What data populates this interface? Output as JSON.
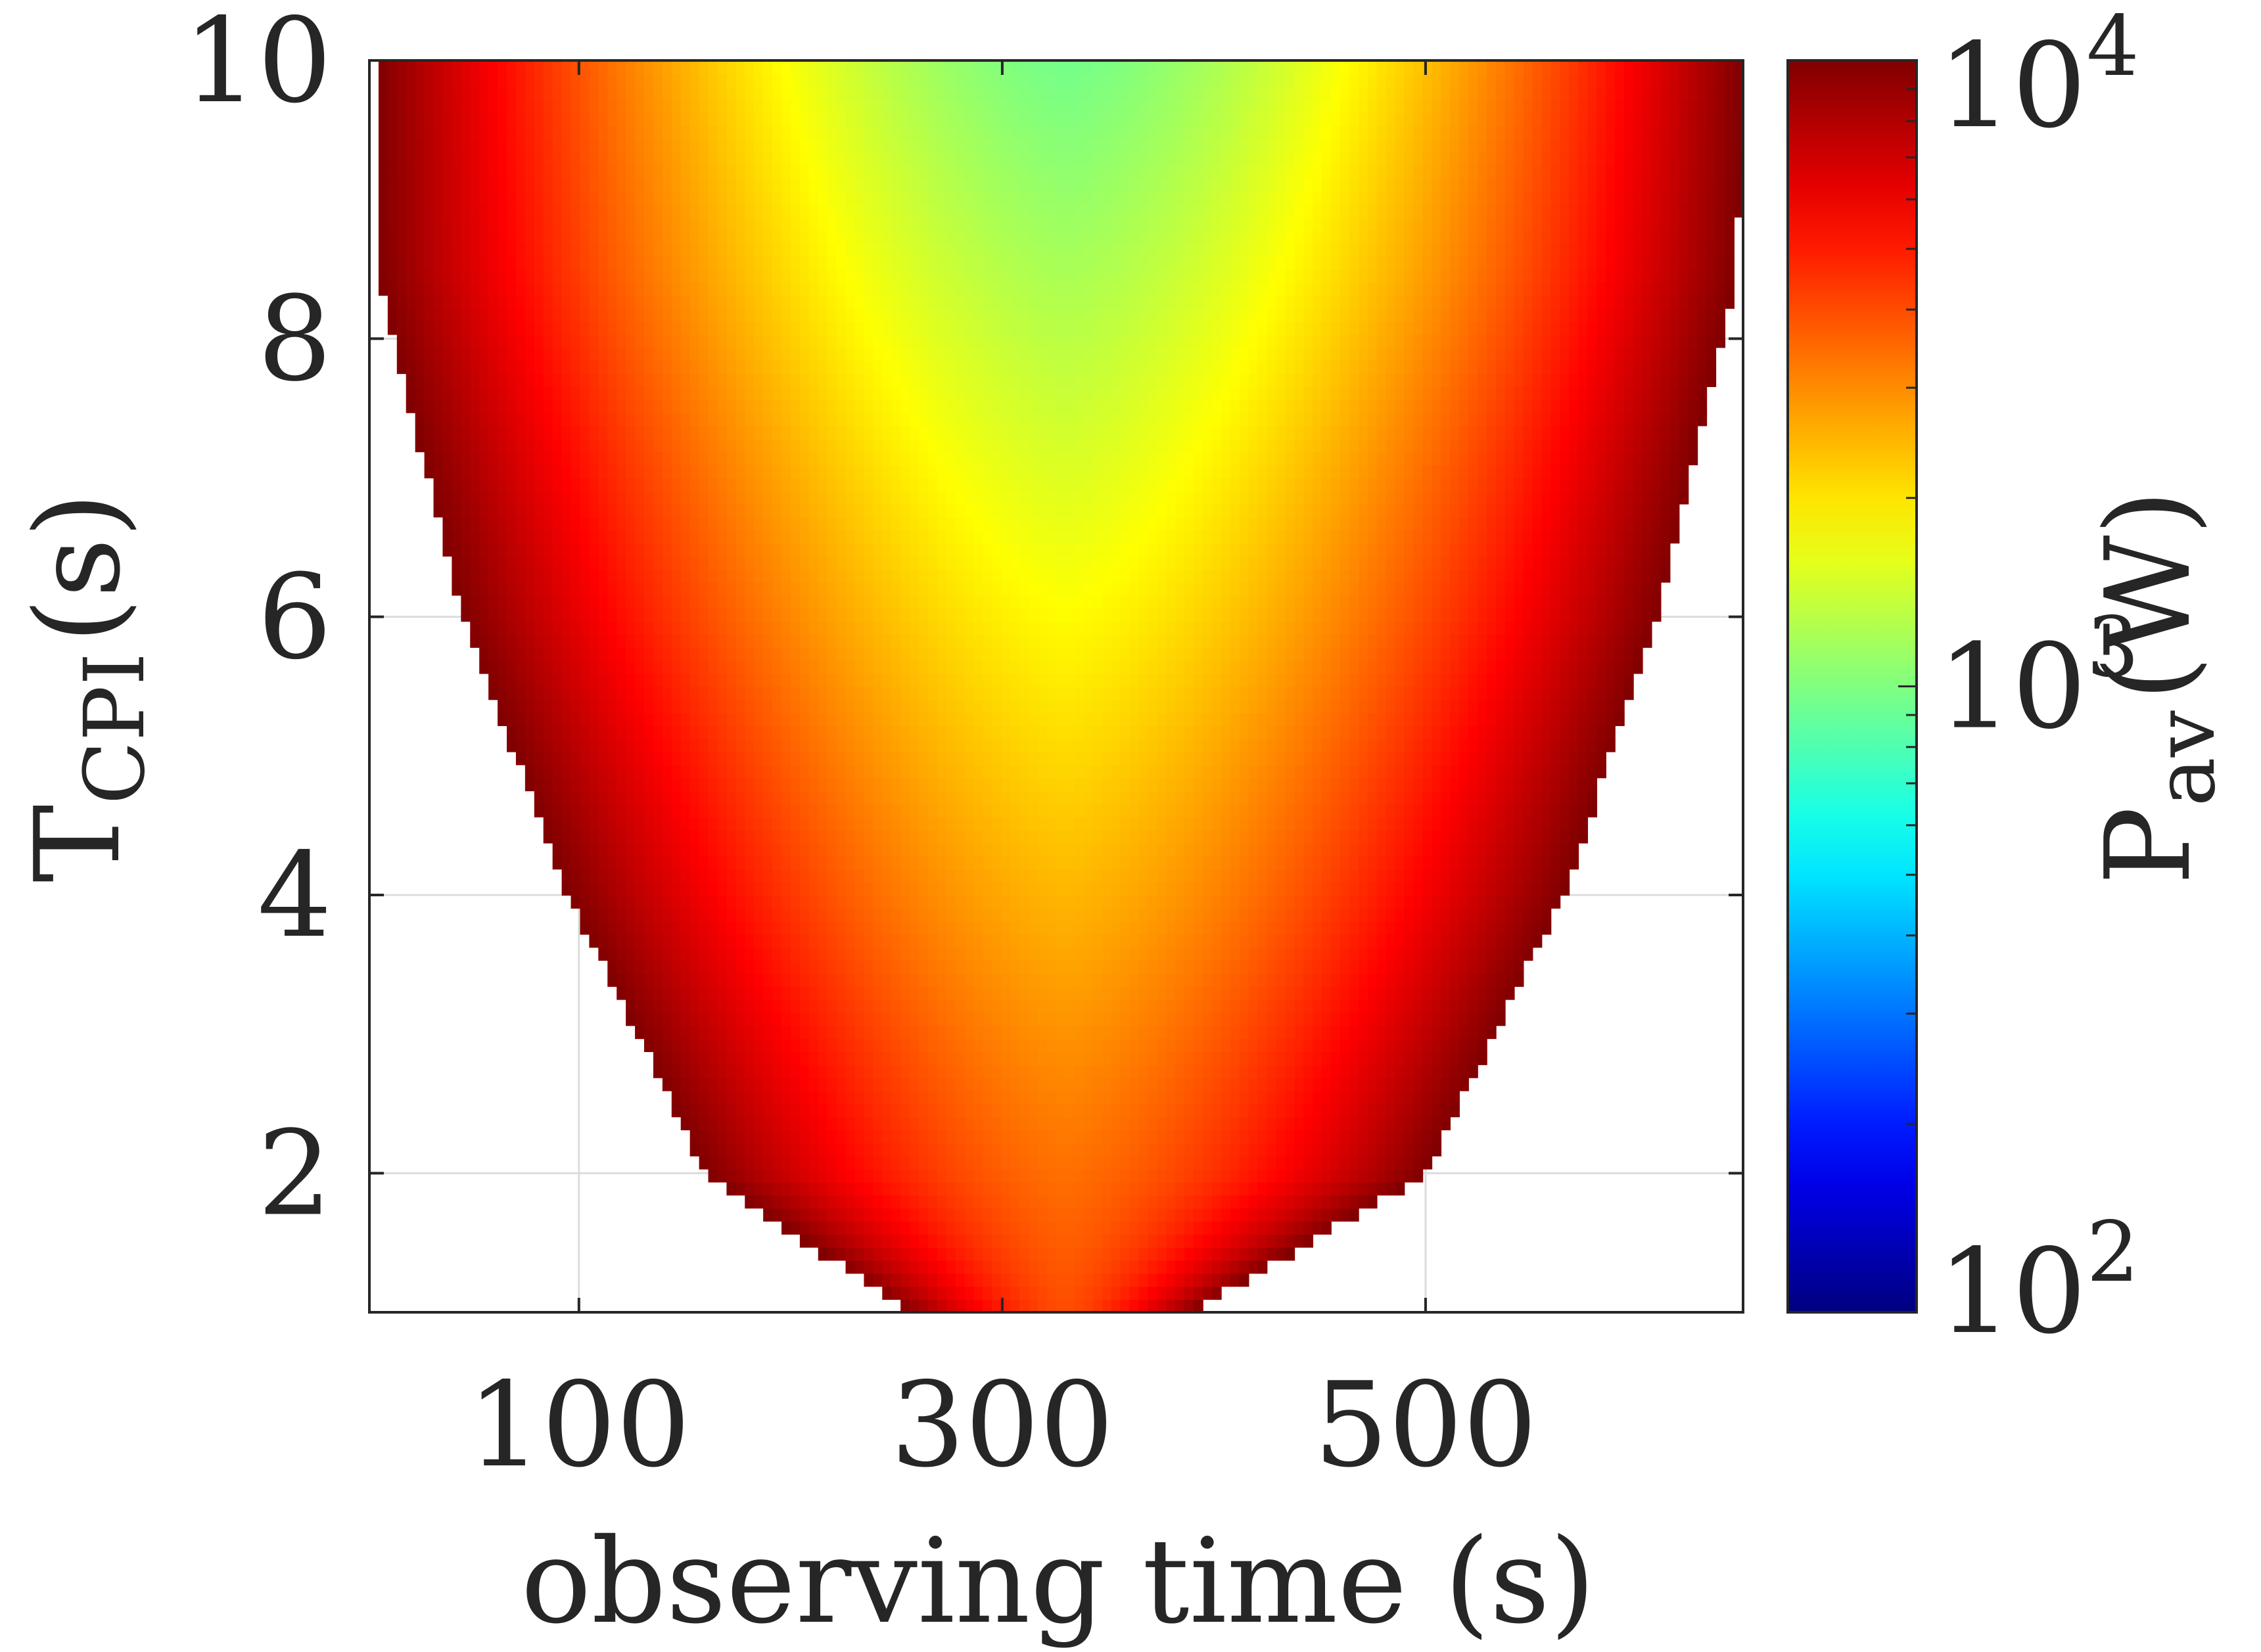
{
  "chart_data": {
    "type": "heatmap",
    "title": "",
    "xlabel": "observing time (s)",
    "ylabel": {
      "main": "T",
      "subscript": "CPI",
      "unit": "(s)"
    },
    "x_range": [
      1,
      650
    ],
    "y_range": [
      1,
      10
    ],
    "x_ticks": [
      100,
      300,
      500
    ],
    "y_ticks": [
      2,
      4,
      6,
      8,
      10
    ],
    "grid": true,
    "colorbar": {
      "label": {
        "main": "P",
        "subscript": "av",
        "unit": "(W)"
      },
      "scale": "log",
      "range": [
        100,
        10000
      ],
      "tick_labels": [
        {
          "base": "10",
          "exp": "2",
          "value": 100
        },
        {
          "base": "10",
          "exp": "3",
          "value": 1000
        },
        {
          "base": "10",
          "exp": "4",
          "value": 10000
        }
      ],
      "colormap": "jet",
      "placement": "right"
    },
    "field": {
      "description_values": {
        "center_x": 330,
        "max_power_W": 10000,
        "valid_region_boundary": [
          {
            "T_cpi": 1.0,
            "x_left": 255,
            "x_right": 390
          },
          {
            "T_cpi": 2.0,
            "x_left": 160,
            "x_right": 500
          },
          {
            "T_cpi": 4.0,
            "x_left": 95,
            "x_right": 565
          },
          {
            "T_cpi": 6.0,
            "x_left": 45,
            "x_right": 610
          },
          {
            "T_cpi": 8.0,
            "x_left": 12,
            "x_right": 640
          },
          {
            "T_cpi": 8.5,
            "x_left": 5,
            "x_right": 647
          },
          {
            "T_cpi": 10.0,
            "x_left": 5,
            "x_right": 650
          }
        ],
        "min_power_at_top_center_W": 950,
        "min_power_at_bottom_center_W": 4000
      }
    }
  }
}
